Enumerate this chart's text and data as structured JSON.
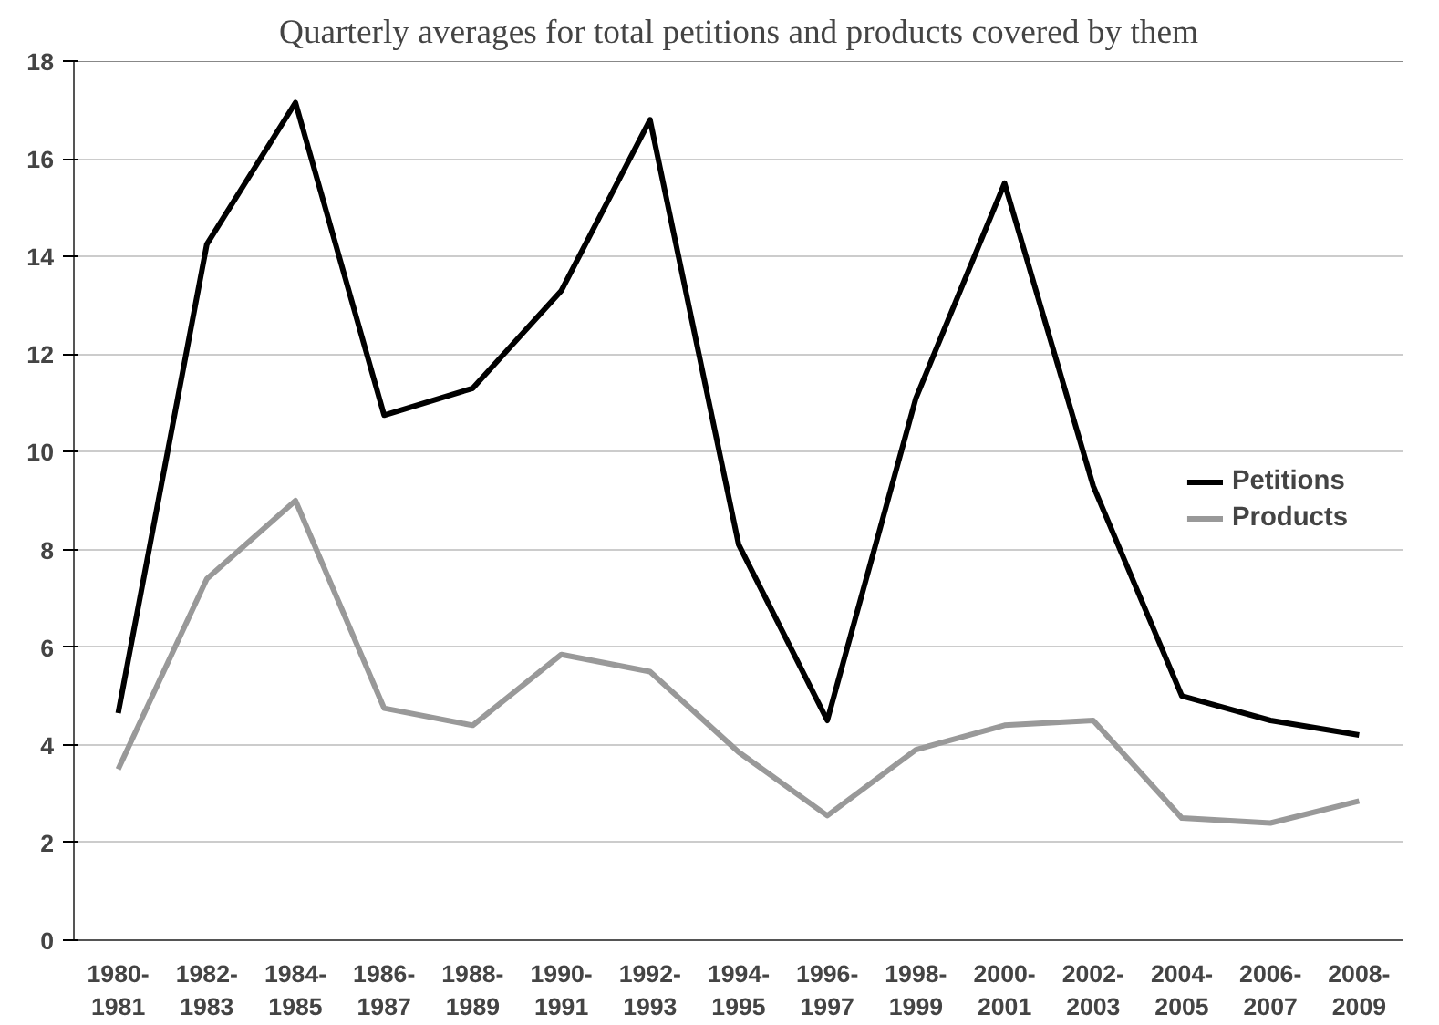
{
  "chart_data": {
    "type": "line",
    "title": "Quarterly averages for total petitions and products covered by them",
    "categories": [
      "1980-1981",
      "1982-1983",
      "1984-1985",
      "1986-1987",
      "1988-1989",
      "1990-1991",
      "1992-1993",
      "1994-1995",
      "1996-1997",
      "1998-1999",
      "2000-2001",
      "2002-2003",
      "2004-2005",
      "2006-2007",
      "2008-2009"
    ],
    "series": [
      {
        "name": "Petitions",
        "color": "#000000",
        "values": [
          4.65,
          14.25,
          17.15,
          10.75,
          11.3,
          13.3,
          16.8,
          8.1,
          4.5,
          11.1,
          15.5,
          9.3,
          5.0,
          4.5,
          4.2
        ]
      },
      {
        "name": "Products",
        "color": "#999999",
        "values": [
          3.5,
          7.4,
          9.0,
          4.75,
          4.4,
          5.85,
          5.5,
          3.85,
          2.55,
          3.9,
          4.4,
          4.5,
          2.5,
          2.4,
          2.85
        ]
      }
    ],
    "ylim": [
      0,
      18
    ],
    "yticks": [
      0,
      2,
      4,
      6,
      8,
      10,
      12,
      14,
      16,
      18
    ],
    "grid": "y",
    "legend": "right",
    "marker": "none",
    "line_style": "solid"
  }
}
